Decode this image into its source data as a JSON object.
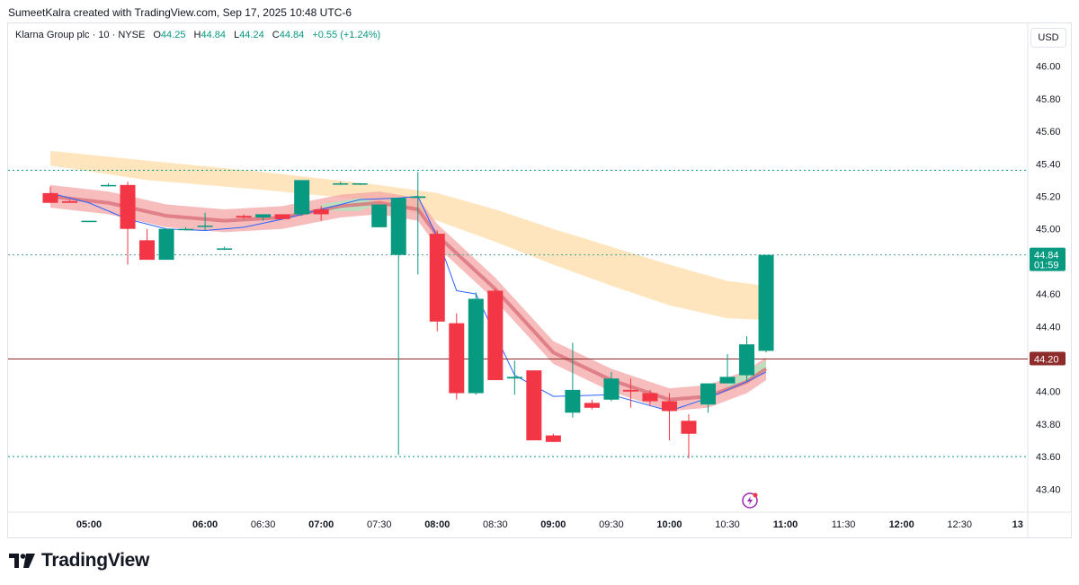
{
  "header": {
    "credit": "SumeetKalra created with TradingView.com, Sep 17, 2025 10:48 UTC-6"
  },
  "legend": {
    "symbol": "Klarna Group plc · 10 · NYSE",
    "open_label": "O",
    "open": "44.25",
    "high_label": "H",
    "high": "44.84",
    "low_label": "L",
    "low": "44.24",
    "close_label": "C",
    "close": "44.84",
    "change": "+0.55 (+1.24%)"
  },
  "currency": "USD",
  "brand": {
    "name": "TradingView",
    "icon": "tradingview-logo-icon"
  },
  "colors": {
    "up": "#089981",
    "down": "#f23645",
    "thin_line": "#2962ff",
    "cloud": "#ffe0b2",
    "ribbon": "#f4a6a6",
    "ribbon_mid": "#d9707a",
    "ribbon_green": "#b7e1c0",
    "level_line": "#8e2b2b",
    "dotted_green": "#089981"
  },
  "chart_data": {
    "type": "candlestick",
    "symbol": "Klarna Group plc",
    "interval": "10",
    "exchange": "NYSE",
    "x_start": "04:40",
    "x_end": "13:00",
    "ylim": [
      43.28,
      46.12
    ],
    "y_ticks": [
      "43.40",
      "43.60",
      "43.80",
      "44.00",
      "44.20",
      "44.40",
      "44.60",
      "44.80",
      "45.00",
      "45.20",
      "45.40",
      "45.60",
      "45.80",
      "46.00"
    ],
    "x_ticks": [
      {
        "t": "05:00",
        "label": "05:00",
        "bold": true
      },
      {
        "t": "06:00",
        "label": "06:00",
        "bold": true
      },
      {
        "t": "06:30",
        "label": "06:30",
        "bold": false
      },
      {
        "t": "07:00",
        "label": "07:00",
        "bold": true
      },
      {
        "t": "07:30",
        "label": "07:30",
        "bold": false
      },
      {
        "t": "08:00",
        "label": "08:00",
        "bold": true
      },
      {
        "t": "08:30",
        "label": "08:30",
        "bold": false
      },
      {
        "t": "09:00",
        "label": "09:00",
        "bold": true
      },
      {
        "t": "09:30",
        "label": "09:30",
        "bold": false
      },
      {
        "t": "10:00",
        "label": "10:00",
        "bold": true
      },
      {
        "t": "10:30",
        "label": "10:30",
        "bold": false
      },
      {
        "t": "11:00",
        "label": "11:00",
        "bold": true
      },
      {
        "t": "11:30",
        "label": "11:30",
        "bold": false
      },
      {
        "t": "12:00",
        "label": "12:00",
        "bold": true
      },
      {
        "t": "12:30",
        "label": "12:30",
        "bold": false
      },
      {
        "t": "13:00",
        "label": "13",
        "bold": true
      }
    ],
    "candles": [
      {
        "t": "04:40",
        "o": 45.22,
        "h": 45.26,
        "l": 45.16,
        "c": 45.16
      },
      {
        "t": "04:50",
        "o": 45.17,
        "h": 45.18,
        "l": 45.16,
        "c": 45.16
      },
      {
        "t": "05:00",
        "o": 45.05,
        "h": 45.05,
        "l": 45.05,
        "c": 45.05
      },
      {
        "t": "05:10",
        "o": 45.27,
        "h": 45.28,
        "l": 45.26,
        "c": 45.27
      },
      {
        "t": "05:20",
        "o": 45.27,
        "h": 45.29,
        "l": 44.78,
        "c": 45.0
      },
      {
        "t": "05:30",
        "o": 44.93,
        "h": 45.0,
        "l": 44.81,
        "c": 44.81
      },
      {
        "t": "05:40",
        "o": 44.81,
        "h": 45.0,
        "l": 44.81,
        "c": 45.0
      },
      {
        "t": "05:50",
        "o": 45.0,
        "h": 45.01,
        "l": 44.99,
        "c": 45.0
      },
      {
        "t": "06:00",
        "o": 45.02,
        "h": 45.1,
        "l": 44.99,
        "c": 45.02
      },
      {
        "t": "06:10",
        "o": 44.88,
        "h": 44.89,
        "l": 44.87,
        "c": 44.88
      },
      {
        "t": "06:20",
        "o": 45.08,
        "h": 45.09,
        "l": 45.06,
        "c": 45.07
      },
      {
        "t": "06:30",
        "o": 45.07,
        "h": 45.09,
        "l": 45.05,
        "c": 45.09
      },
      {
        "t": "06:40",
        "o": 45.09,
        "h": 45.09,
        "l": 45.06,
        "c": 45.06
      },
      {
        "t": "06:50",
        "o": 45.09,
        "h": 45.3,
        "l": 45.08,
        "c": 45.3
      },
      {
        "t": "07:00",
        "o": 45.12,
        "h": 45.14,
        "l": 45.05,
        "c": 45.09
      },
      {
        "t": "07:10",
        "o": 45.28,
        "h": 45.29,
        "l": 45.27,
        "c": 45.28
      },
      {
        "t": "07:20",
        "o": 45.28,
        "h": 45.28,
        "l": 45.27,
        "c": 45.28
      },
      {
        "t": "07:30",
        "o": 45.01,
        "h": 45.15,
        "l": 45.01,
        "c": 45.15
      },
      {
        "t": "07:40",
        "o": 44.84,
        "h": 45.19,
        "l": 43.61,
        "c": 45.19
      },
      {
        "t": "07:50",
        "o": 45.19,
        "h": 45.35,
        "l": 44.72,
        "c": 45.2
      },
      {
        "t": "08:00",
        "o": 44.97,
        "h": 44.99,
        "l": 44.37,
        "c": 44.43
      },
      {
        "t": "08:10",
        "o": 44.42,
        "h": 44.48,
        "l": 43.95,
        "c": 43.99
      },
      {
        "t": "08:20",
        "o": 43.99,
        "h": 44.61,
        "l": 43.98,
        "c": 44.57
      },
      {
        "t": "08:30",
        "o": 44.62,
        "h": 44.63,
        "l": 44.07,
        "c": 44.07
      },
      {
        "t": "08:40",
        "o": 44.08,
        "h": 44.19,
        "l": 43.98,
        "c": 44.09
      },
      {
        "t": "08:50",
        "o": 44.13,
        "h": 44.13,
        "l": 43.7,
        "c": 43.7
      },
      {
        "t": "09:00",
        "o": 43.73,
        "h": 43.74,
        "l": 43.69,
        "c": 43.69
      },
      {
        "t": "09:10",
        "o": 43.87,
        "h": 44.3,
        "l": 43.84,
        "c": 44.01
      },
      {
        "t": "09:20",
        "o": 43.93,
        "h": 43.95,
        "l": 43.89,
        "c": 43.9
      },
      {
        "t": "09:30",
        "o": 43.95,
        "h": 44.12,
        "l": 43.94,
        "c": 44.08
      },
      {
        "t": "09:40",
        "o": 44.01,
        "h": 44.08,
        "l": 43.9,
        "c": 44.0
      },
      {
        "t": "09:50",
        "o": 43.99,
        "h": 44.01,
        "l": 43.91,
        "c": 43.94
      },
      {
        "t": "10:00",
        "o": 43.94,
        "h": 43.99,
        "l": 43.7,
        "c": 43.88
      },
      {
        "t": "10:10",
        "o": 43.82,
        "h": 43.86,
        "l": 43.59,
        "c": 43.74
      },
      {
        "t": "10:20",
        "o": 43.92,
        "h": 44.05,
        "l": 43.87,
        "c": 44.05
      },
      {
        "t": "10:30",
        "o": 44.05,
        "h": 44.23,
        "l": 44.05,
        "c": 44.09
      },
      {
        "t": "10:40",
        "o": 44.1,
        "h": 44.34,
        "l": 44.06,
        "c": 44.29
      },
      {
        "t": "10:50",
        "o": 44.25,
        "h": 44.84,
        "l": 44.24,
        "c": 44.84
      }
    ],
    "ribbon_line": [
      {
        "t": "04:40",
        "v": 45.2
      },
      {
        "t": "05:10",
        "v": 45.16
      },
      {
        "t": "05:40",
        "v": 45.08
      },
      {
        "t": "06:10",
        "v": 45.05
      },
      {
        "t": "06:40",
        "v": 45.07
      },
      {
        "t": "07:10",
        "v": 45.14
      },
      {
        "t": "07:30",
        "v": 45.16
      },
      {
        "t": "07:50",
        "v": 45.12
      },
      {
        "t": "08:00",
        "v": 44.96
      },
      {
        "t": "08:30",
        "v": 44.63
      },
      {
        "t": "09:00",
        "v": 44.24
      },
      {
        "t": "09:30",
        "v": 44.07
      },
      {
        "t": "10:00",
        "v": 43.95
      },
      {
        "t": "10:20",
        "v": 43.97
      },
      {
        "t": "10:40",
        "v": 44.06
      },
      {
        "t": "10:50",
        "v": 44.14
      }
    ],
    "fast_line": [
      {
        "t": "04:40",
        "v": 45.22
      },
      {
        "t": "05:00",
        "v": 45.16
      },
      {
        "t": "05:20",
        "v": 45.06
      },
      {
        "t": "05:40",
        "v": 45.0
      },
      {
        "t": "06:00",
        "v": 44.99
      },
      {
        "t": "06:20",
        "v": 45.01
      },
      {
        "t": "06:40",
        "v": 45.06
      },
      {
        "t": "07:00",
        "v": 45.12
      },
      {
        "t": "07:20",
        "v": 45.18
      },
      {
        "t": "07:40",
        "v": 45.19
      },
      {
        "t": "07:50",
        "v": 45.2
      },
      {
        "t": "08:00",
        "v": 44.95
      },
      {
        "t": "08:10",
        "v": 44.62
      },
      {
        "t": "08:20",
        "v": 44.6
      },
      {
        "t": "08:40",
        "v": 44.1
      },
      {
        "t": "09:00",
        "v": 43.97
      },
      {
        "t": "09:30",
        "v": 43.98
      },
      {
        "t": "10:00",
        "v": 43.88
      },
      {
        "t": "10:20",
        "v": 43.96
      },
      {
        "t": "10:40",
        "v": 44.06
      },
      {
        "t": "10:50",
        "v": 44.12
      }
    ],
    "cloud": [
      {
        "t": "04:40",
        "u": 45.48,
        "l": 45.39
      },
      {
        "t": "05:30",
        "u": 45.42,
        "l": 45.3
      },
      {
        "t": "06:30",
        "u": 45.35,
        "l": 45.24
      },
      {
        "t": "07:30",
        "u": 45.27,
        "l": 45.17
      },
      {
        "t": "08:00",
        "u": 45.22,
        "l": 45.05
      },
      {
        "t": "08:30",
        "u": 45.12,
        "l": 44.92
      },
      {
        "t": "09:00",
        "u": 45.0,
        "l": 44.78
      },
      {
        "t": "09:30",
        "u": 44.89,
        "l": 44.65
      },
      {
        "t": "10:00",
        "u": 44.78,
        "l": 44.53
      },
      {
        "t": "10:30",
        "u": 44.68,
        "l": 44.45
      },
      {
        "t": "10:50",
        "u": 44.65,
        "l": 44.44
      }
    ],
    "levels": [
      {
        "v": 45.36,
        "style": "dotted",
        "color": "#089981"
      },
      {
        "v": 44.84,
        "style": "dotted",
        "color": "#4a9e93"
      },
      {
        "v": 44.2,
        "style": "solid",
        "color": "#8e2b2b"
      },
      {
        "v": 43.6,
        "style": "dotted",
        "color": "#089981"
      }
    ],
    "price_tags": [
      {
        "v": 44.84,
        "label": "44.84",
        "sub": "01:59",
        "color": "#089981"
      },
      {
        "v": 44.2,
        "label": "44.20",
        "sub": "",
        "color": "#8e2b2b"
      }
    ]
  }
}
